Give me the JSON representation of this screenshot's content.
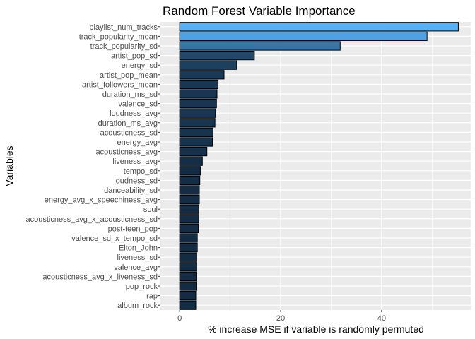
{
  "chart_data": {
    "type": "bar",
    "orientation": "horizontal",
    "title": "Random Forest Variable Importance",
    "xlabel": "% increase MSE if variable is randomly permuted",
    "ylabel": "Variables",
    "xlim": [
      -3.8,
      57.8
    ],
    "xticks": [
      0,
      20,
      40
    ],
    "grid": true,
    "legend": "none",
    "fill_scale": {
      "low": "#132b43",
      "high": "#56b1f7"
    },
    "categories": [
      "playlist_num_tracks",
      "track_popularity_mean",
      "track_popularity_sd",
      "artist_pop_sd",
      "energy_sd",
      "artist_pop_mean",
      "artist_followers_mean",
      "duration_ms_sd",
      "valence_sd",
      "loudness_avg",
      "duration_ms_avg",
      "acousticness_sd",
      "energy_avg",
      "acousticness_avg",
      "liveness_avg",
      "tempo_sd",
      "loudness_sd",
      "danceability_sd",
      "energy_avg_x_speechiness_avg",
      "soul",
      "acousticness_avg_x_acousticness_sd",
      "post-teen_pop",
      "valence_sd_x_tempo_sd",
      "Elton_John",
      "liveness_sd",
      "valence_avg",
      "acousticness_avg_x_liveness_sd",
      "pop_rock",
      "rap",
      "album_rock"
    ],
    "values": [
      55.2,
      49.0,
      31.8,
      14.8,
      11.3,
      8.8,
      7.6,
      7.4,
      7.3,
      7.1,
      7.0,
      6.6,
      6.5,
      5.4,
      4.5,
      4.1,
      4.0,
      3.9,
      3.9,
      3.8,
      3.8,
      3.7,
      3.5,
      3.5,
      3.4,
      3.4,
      3.3,
      3.3,
      3.2,
      3.2
    ]
  }
}
